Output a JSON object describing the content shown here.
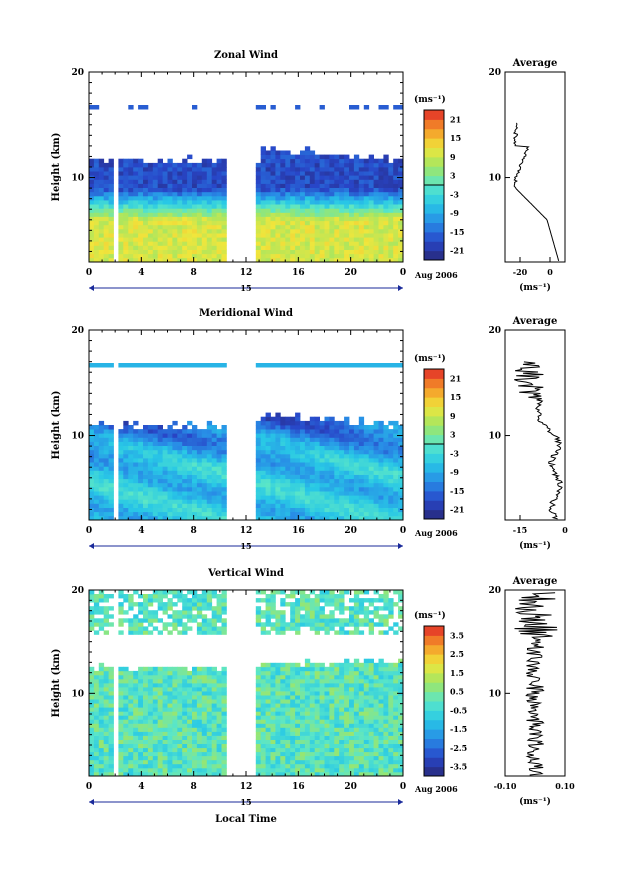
{
  "chart_data": [
    {
      "type": "heatmap",
      "title": "Zonal Wind",
      "ylabel": "Height (km)",
      "xlabel": "",
      "xlim": [
        0,
        24
      ],
      "ylim": [
        2,
        20
      ],
      "xticks": [
        "0",
        "4",
        "8",
        "12",
        "16",
        "20",
        "0"
      ],
      "yticks": [
        "10",
        "20"
      ],
      "date_label": "15",
      "month_label": "Aug 2006",
      "colorbar": {
        "unit": "(ms⁻¹)",
        "ticks": [
          "21",
          "15",
          "9",
          "3",
          "-3",
          "-9",
          "-15",
          "-21"
        ],
        "range": [
          -24,
          24
        ]
      },
      "field": "zonal",
      "profile": {
        "title": "Average",
        "xticks": [
          "-20",
          "0"
        ],
        "xlim": [
          -30,
          10
        ],
        "unit": "(ms⁻¹)"
      }
    },
    {
      "type": "heatmap",
      "title": "Meridional Wind",
      "ylabel": "Height (km)",
      "xlabel": "",
      "xlim": [
        0,
        24
      ],
      "ylim": [
        2,
        20
      ],
      "xticks": [
        "0",
        "4",
        "8",
        "12",
        "16",
        "20",
        "0"
      ],
      "yticks": [
        "10",
        "20"
      ],
      "date_label": "15",
      "month_label": "Aug 2006",
      "colorbar": {
        "unit": "(ms⁻¹)",
        "ticks": [
          "21",
          "15",
          "9",
          "3",
          "-3",
          "-9",
          "-15",
          "-21"
        ],
        "range": [
          -24,
          24
        ]
      },
      "field": "meridional",
      "profile": {
        "title": "Average",
        "xticks": [
          "-15",
          "0"
        ],
        "xlim": [
          -20,
          0
        ],
        "unit": "(ms⁻¹)"
      }
    },
    {
      "type": "heatmap",
      "title": "Vertical Wind",
      "ylabel": "Height (km)",
      "xlabel": "Local Time",
      "xlim": [
        0,
        24
      ],
      "ylim": [
        2,
        20
      ],
      "xticks": [
        "0",
        "4",
        "8",
        "12",
        "16",
        "20",
        "0"
      ],
      "yticks": [
        "10",
        "20"
      ],
      "date_label": "15",
      "month_label": "Aug 2006",
      "colorbar": {
        "unit": "(ms⁻¹)",
        "ticks": [
          "3.5",
          "2.5",
          "1.5",
          "0.5",
          "-0.5",
          "-1.5",
          "-2.5",
          "-3.5"
        ],
        "range": [
          -4,
          4
        ]
      },
      "field": "vertical",
      "profile": {
        "title": "Average",
        "xticks": [
          "-0.10",
          "0.10"
        ],
        "xlim": [
          -0.1,
          0.1
        ],
        "unit": "(ms⁻¹)"
      }
    }
  ]
}
